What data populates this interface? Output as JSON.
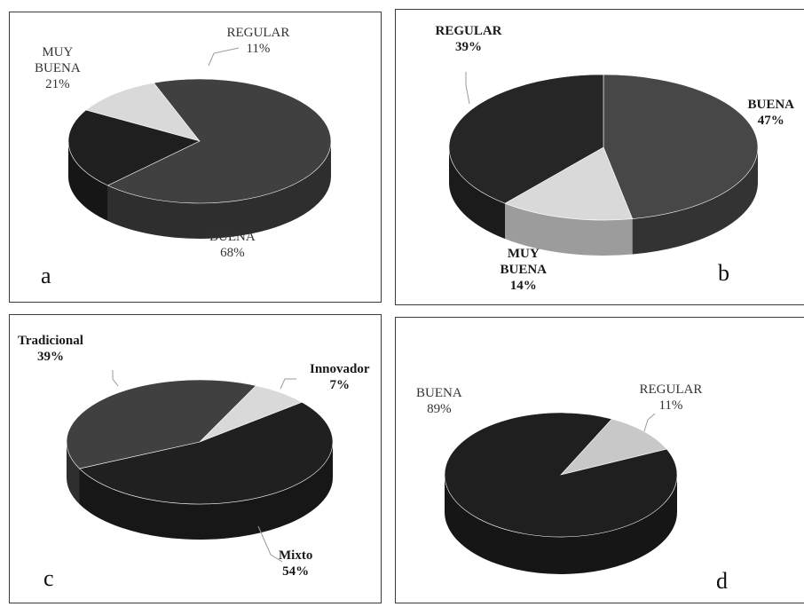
{
  "chart_data": [
    {
      "type": "pie",
      "panel": "a",
      "categories": [
        "REGULAR",
        "BUENA",
        "MUY BUENA"
      ],
      "values": [
        11,
        68,
        21
      ],
      "labels": [
        {
          "name": [
            "REGULAR"
          ],
          "pct": "11%"
        },
        {
          "name": [
            "BUENA"
          ],
          "pct": "68%"
        },
        {
          "name": [
            "MUY",
            "BUENA"
          ],
          "pct": "21%"
        }
      ],
      "colors": [
        "#d9d9d9",
        "#404040",
        "#1f1f1f"
      ],
      "start_angle": 150,
      "label_style": "normal"
    },
    {
      "type": "pie",
      "panel": "b",
      "categories": [
        "BUENA",
        "MUY BUENA",
        "REGULAR"
      ],
      "values": [
        47,
        14,
        39
      ],
      "labels": [
        {
          "name": [
            "BUENA"
          ],
          "pct": "47%"
        },
        {
          "name": [
            "MUY",
            "BUENA"
          ],
          "pct": "14%"
        },
        {
          "name": [
            "REGULAR"
          ],
          "pct": "39%"
        }
      ],
      "colors": [
        "#474747",
        "#d9d9d9",
        "#262626"
      ],
      "start_angle": 90,
      "label_style": "bold"
    },
    {
      "type": "pie",
      "panel": "c",
      "categories": [
        "Innovador",
        "Mixto",
        "Tradicional"
      ],
      "values": [
        7,
        54,
        39
      ],
      "labels": [
        {
          "name": [
            "Innovador"
          ],
          "pct": "7%"
        },
        {
          "name": [
            "Mixto"
          ],
          "pct": "54%"
        },
        {
          "name": [
            "Tradicional"
          ],
          "pct": "39%"
        }
      ],
      "colors": [
        "#d9d9d9",
        "#202020",
        "#404040"
      ],
      "start_angle": 65,
      "label_style": "bold"
    },
    {
      "type": "pie",
      "panel": "d",
      "categories": [
        "REGULAR",
        "BUENA"
      ],
      "values": [
        11,
        89
      ],
      "labels": [
        {
          "name": [
            "REGULAR"
          ],
          "pct": "11%"
        },
        {
          "name": [
            "BUENA"
          ],
          "pct": "89%"
        }
      ],
      "colors": [
        "#c8c8c8",
        "#1f1f1f"
      ],
      "start_angle": 64,
      "label_style": "normal"
    }
  ],
  "panel_letters": [
    "a",
    "b",
    "c",
    "d"
  ]
}
